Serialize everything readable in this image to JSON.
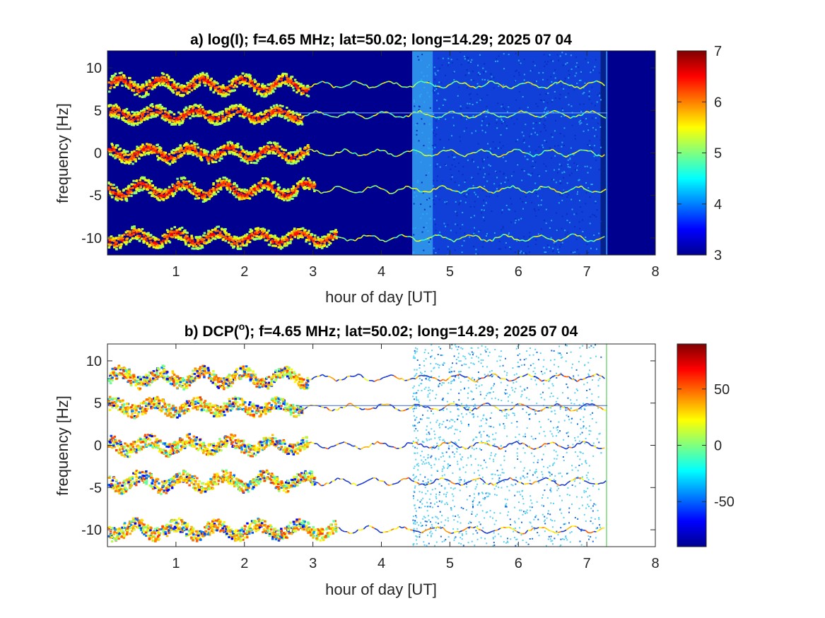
{
  "chart_data": [
    {
      "type": "heatmap",
      "title": "a) log(I); f=4.65 MHz;  lat=50.02; long=14.29; 2025 07 04",
      "xlabel": "hour of day [UT]",
      "ylabel": "frequency [Hz]",
      "xlim": [
        0,
        8
      ],
      "ylim": [
        -12,
        12
      ],
      "xticks": [
        1,
        2,
        3,
        4,
        5,
        6,
        7,
        8
      ],
      "yticks": [
        10,
        5,
        0,
        -5,
        -10
      ],
      "colorbar": {
        "range": [
          3,
          7
        ],
        "ticks": [
          7,
          6,
          5,
          4,
          3
        ],
        "colormap": "jet"
      },
      "background_value": 3,
      "traces": [
        {
          "center_hz": 8,
          "amplitude_hz": 0.7,
          "period_h": 0.6,
          "strong_until_h": 2.9,
          "faint_until_h": 7.3
        },
        {
          "center_hz": 4.5,
          "amplitude_hz": 0.5,
          "period_h": 0.6,
          "strong_until_h": 2.8,
          "faint_until_h": 7.3
        },
        {
          "center_hz": 0,
          "amplitude_hz": 0.6,
          "period_h": 0.6,
          "strong_until_h": 2.9,
          "faint_until_h": 7.3
        },
        {
          "center_hz": -4.3,
          "amplitude_hz": 0.7,
          "period_h": 0.6,
          "strong_until_h": 3.0,
          "faint_until_h": 7.3
        },
        {
          "center_hz": -10,
          "amplitude_hz": 0.6,
          "period_h": 0.6,
          "strong_until_h": 3.3,
          "faint_until_h": 7.3
        }
      ],
      "noise_region_h": [
        4.45,
        7.2
      ],
      "bright_stripe_h": [
        4.45,
        4.75
      ]
    },
    {
      "type": "heatmap",
      "title": "b) DCP(",
      "title_superscript": "o",
      "title_suffix": "); f=4.65 MHz;  lat=50.02; long=14.29; 2025 07 04",
      "xlabel": "hour of day [UT]",
      "ylabel": "frequency [Hz]",
      "xlim": [
        0,
        8
      ],
      "ylim": [
        -12,
        12
      ],
      "xticks": [
        1,
        2,
        3,
        4,
        5,
        6,
        7,
        8
      ],
      "yticks": [
        10,
        5,
        0,
        -5,
        -10
      ],
      "colorbar": {
        "range": [
          -90,
          90
        ],
        "ticks": [
          50,
          0,
          -50
        ],
        "colormap": "jet"
      },
      "background": "white",
      "traces": [
        {
          "center_hz": 8,
          "amplitude_hz": 0.7,
          "period_h": 0.6,
          "strong_until_h": 2.9,
          "faint_until_h": 7.3
        },
        {
          "center_hz": 4.5,
          "amplitude_hz": 0.5,
          "period_h": 0.6,
          "strong_until_h": 2.8,
          "faint_until_h": 7.3
        },
        {
          "center_hz": 0,
          "amplitude_hz": 0.6,
          "period_h": 0.6,
          "strong_until_h": 2.9,
          "faint_until_h": 7.3
        },
        {
          "center_hz": -4.3,
          "amplitude_hz": 0.7,
          "period_h": 0.6,
          "strong_until_h": 3.0,
          "faint_until_h": 7.3
        },
        {
          "center_hz": -10,
          "amplitude_hz": 0.6,
          "period_h": 0.6,
          "strong_until_h": 3.3,
          "faint_until_h": 7.3
        }
      ],
      "noise_region_h": [
        4.45,
        7.2
      ]
    }
  ]
}
